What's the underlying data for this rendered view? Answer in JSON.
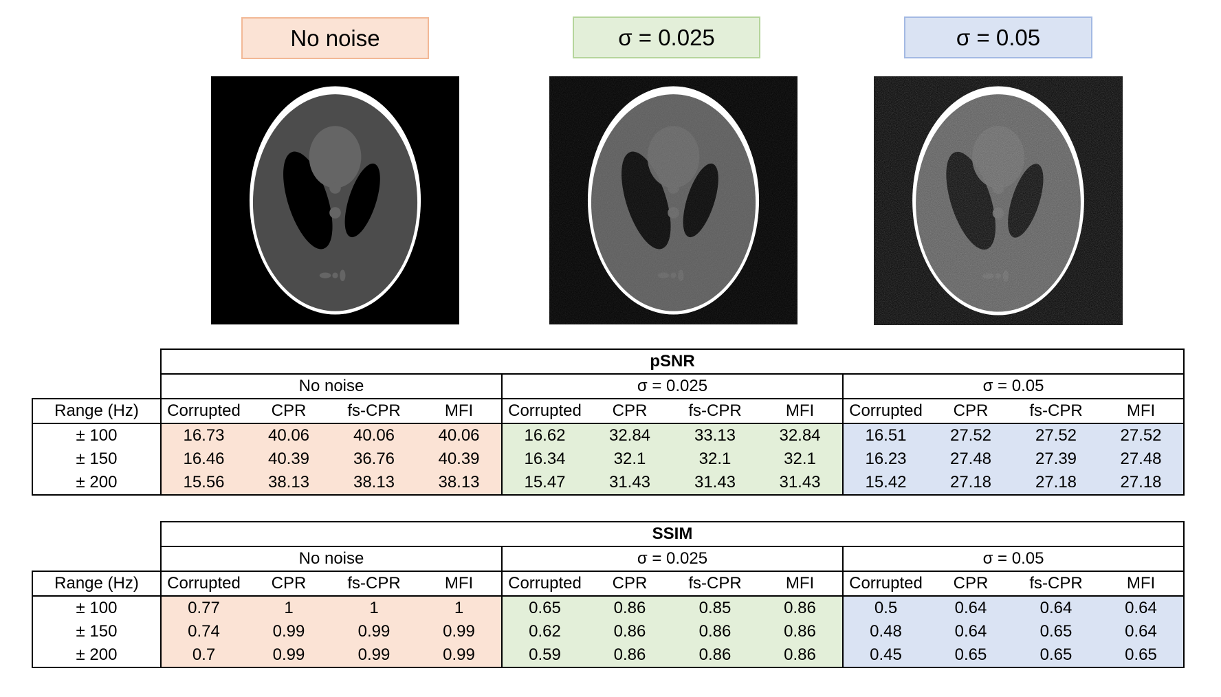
{
  "labels": {
    "no_noise": "No noise",
    "sigma_025": "σ = 0.025",
    "sigma_05": "σ = 0.05"
  },
  "images": [
    {
      "name": "phantom-no-noise",
      "noise_sigma": 0
    },
    {
      "name": "phantom-sigma-0.025",
      "noise_sigma": 0.025
    },
    {
      "name": "phantom-sigma-0.05",
      "noise_sigma": 0.05
    }
  ],
  "colors": {
    "no_noise_fill": "#fbe3d5",
    "no_noise_border": "#f2b896",
    "sigma_025_fill": "#e3efd9",
    "sigma_025_border": "#b5d59b",
    "sigma_05_fill": "#dae3f3",
    "sigma_05_border": "#a3b9e3"
  },
  "tables": [
    {
      "title": "pSNR",
      "groups": [
        "No noise",
        "σ = 0.025",
        "σ = 0.05"
      ],
      "range_header": "Range (Hz)",
      "columns": [
        "Corrupted",
        "CPR",
        "fs-CPR",
        "MFI",
        "Corrupted",
        "CPR",
        "fs-CPR",
        "MFI",
        "Corrupted",
        "CPR",
        "fs-CPR",
        "MFI"
      ],
      "rows": [
        {
          "range": "± 100",
          "values": [
            "16.73",
            "40.06",
            "40.06",
            "40.06",
            "16.62",
            "32.84",
            "33.13",
            "32.84",
            "16.51",
            "27.52",
            "27.52",
            "27.52"
          ]
        },
        {
          "range": "± 150",
          "values": [
            "16.46",
            "40.39",
            "36.76",
            "40.39",
            "16.34",
            "32.1",
            "32.1",
            "32.1",
            "16.23",
            "27.48",
            "27.39",
            "27.48"
          ]
        },
        {
          "range": "± 200",
          "values": [
            "15.56",
            "38.13",
            "38.13",
            "38.13",
            "15.47",
            "31.43",
            "31.43",
            "31.43",
            "15.42",
            "27.18",
            "27.18",
            "27.18"
          ]
        }
      ]
    },
    {
      "title": "SSIM",
      "groups": [
        "No noise",
        "σ = 0.025",
        "σ = 0.05"
      ],
      "range_header": "Range (Hz)",
      "columns": [
        "Corrupted",
        "CPR",
        "fs-CPR",
        "MFI",
        "Corrupted",
        "CPR",
        "fs-CPR",
        "MFI",
        "Corrupted",
        "CPR",
        "fs-CPR",
        "MFI"
      ],
      "rows": [
        {
          "range": "± 100",
          "values": [
            "0.77",
            "1",
            "1",
            "1",
            "0.65",
            "0.86",
            "0.85",
            "0.86",
            "0.5",
            "0.64",
            "0.64",
            "0.64"
          ]
        },
        {
          "range": "± 150",
          "values": [
            "0.74",
            "0.99",
            "0.99",
            "0.99",
            "0.62",
            "0.86",
            "0.86",
            "0.86",
            "0.48",
            "0.64",
            "0.65",
            "0.64"
          ]
        },
        {
          "range": "± 200",
          "values": [
            "0.7",
            "0.99",
            "0.99",
            "0.99",
            "0.59",
            "0.86",
            "0.86",
            "0.86",
            "0.45",
            "0.65",
            "0.65",
            "0.65"
          ]
        }
      ]
    }
  ]
}
